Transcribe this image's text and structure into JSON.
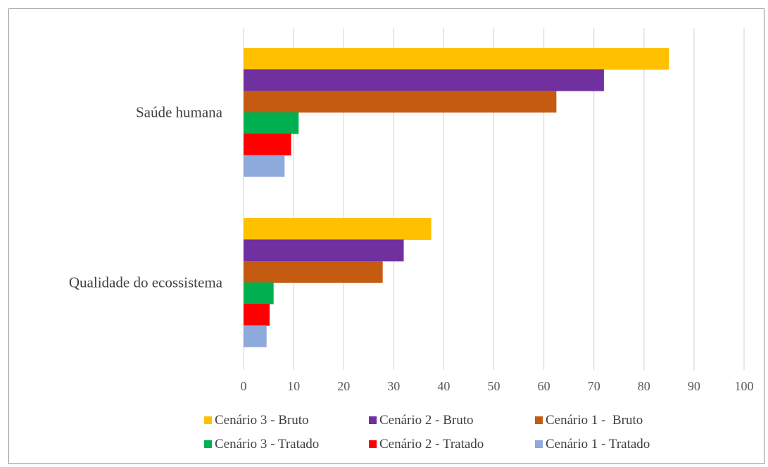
{
  "chart_data": {
    "type": "bar",
    "orientation": "horizontal",
    "categories": [
      "Saúde humana",
      "Qualidade do ecossistema"
    ],
    "series": [
      {
        "name": "Cenário 3 - Bruto",
        "color": "#FFC000",
        "values": [
          85,
          37.5
        ]
      },
      {
        "name": "Cenário 2 - Bruto",
        "color": "#7030A0",
        "values": [
          72,
          32
        ]
      },
      {
        "name": "Cenário 1 -  Bruto",
        "color": "#C55A11",
        "values": [
          62.5,
          27.8
        ]
      },
      {
        "name": "Cenário 3 - Tratado",
        "color": "#00B050",
        "values": [
          11,
          6
        ]
      },
      {
        "name": "Cenário 2 - Tratado",
        "color": "#FF0000",
        "values": [
          9.5,
          5.2
        ]
      },
      {
        "name": "Cenário 1 - Tratado",
        "color": "#8EA9DB",
        "values": [
          8.2,
          4.6
        ]
      }
    ],
    "xlim": [
      0,
      100
    ],
    "xticks": [
      "0",
      "10",
      "20",
      "30",
      "40",
      "50",
      "60",
      "70",
      "80",
      "90",
      "100"
    ],
    "grid": "vertical",
    "legend_position": "bottom"
  }
}
